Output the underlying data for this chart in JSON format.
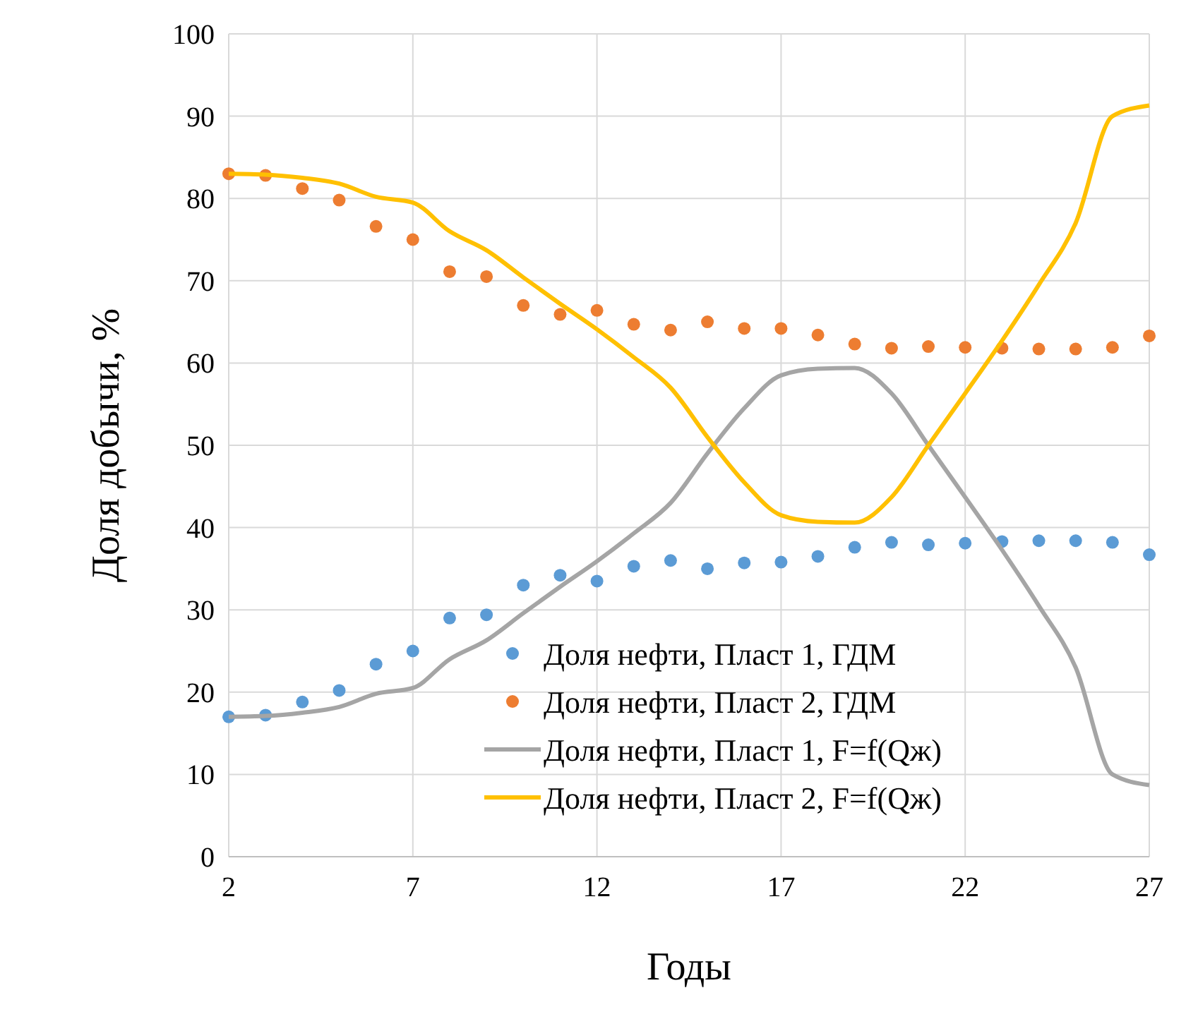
{
  "chart_data": {
    "type": "line",
    "xlabel": "Годы",
    "ylabel": "Доля добычи, %",
    "x": [
      2,
      3,
      4,
      5,
      6,
      7,
      8,
      9,
      10,
      11,
      12,
      13,
      14,
      15,
      16,
      17,
      18,
      19,
      20,
      21,
      22,
      23,
      24,
      25,
      26,
      27
    ],
    "xlim": [
      2,
      27
    ],
    "xticks": [
      2,
      7,
      12,
      17,
      22,
      27
    ],
    "ylim": [
      0,
      100
    ],
    "yticks": [
      0,
      10,
      20,
      30,
      40,
      50,
      60,
      70,
      80,
      90,
      100
    ],
    "grid": true,
    "legend": "bottom right",
    "series": [
      {
        "name": "Доля нефти, Пласт 1, ГДМ",
        "type": "scatter",
        "marker": "circle",
        "color": "#5b9bd5",
        "values": [
          17,
          17.2,
          18.8,
          20.2,
          23.4,
          25,
          29,
          29.4,
          33,
          34.2,
          33.5,
          35.3,
          36,
          35,
          35.7,
          35.8,
          36.5,
          37.6,
          38.2,
          37.9,
          38.1,
          38.3,
          38.4,
          38.4,
          38.2,
          36.7
        ]
      },
      {
        "name": "Доля нефти, Пласт 2, ГДМ",
        "type": "scatter",
        "marker": "circle",
        "color": "#ed7d31",
        "values": [
          83,
          82.8,
          81.2,
          79.8,
          76.6,
          75,
          71.1,
          70.5,
          67,
          65.9,
          66.4,
          64.7,
          64,
          65,
          64.2,
          64.2,
          63.4,
          62.3,
          61.8,
          62,
          61.9,
          61.8,
          61.7,
          61.7,
          61.9,
          63.3
        ]
      },
      {
        "name": "Доля нефти, Пласт 1, F=f(Qж)",
        "type": "line",
        "line_style": "solid",
        "color": "#a5a5a5",
        "values": [
          17,
          17.1,
          17.5,
          18.2,
          19.8,
          20.5,
          24,
          26.3,
          29.6,
          32.8,
          35.9,
          39.3,
          43,
          49,
          54.5,
          58.5,
          59.3,
          59.4,
          56.3,
          50,
          43.7,
          37.3,
          30.5,
          23,
          10,
          8.7
        ]
      },
      {
        "name": "Доля нефти, Пласт 2, F=f(Qж)",
        "type": "line",
        "line_style": "solid",
        "color": "#ffc000",
        "values": [
          83,
          82.9,
          82.5,
          81.8,
          80.2,
          79.5,
          76,
          73.7,
          70.4,
          67.2,
          64.1,
          60.7,
          57,
          51,
          45.5,
          41.5,
          40.7,
          40.6,
          43.7,
          50,
          56.3,
          62.7,
          69.5,
          77,
          90,
          91.3
        ]
      }
    ]
  }
}
